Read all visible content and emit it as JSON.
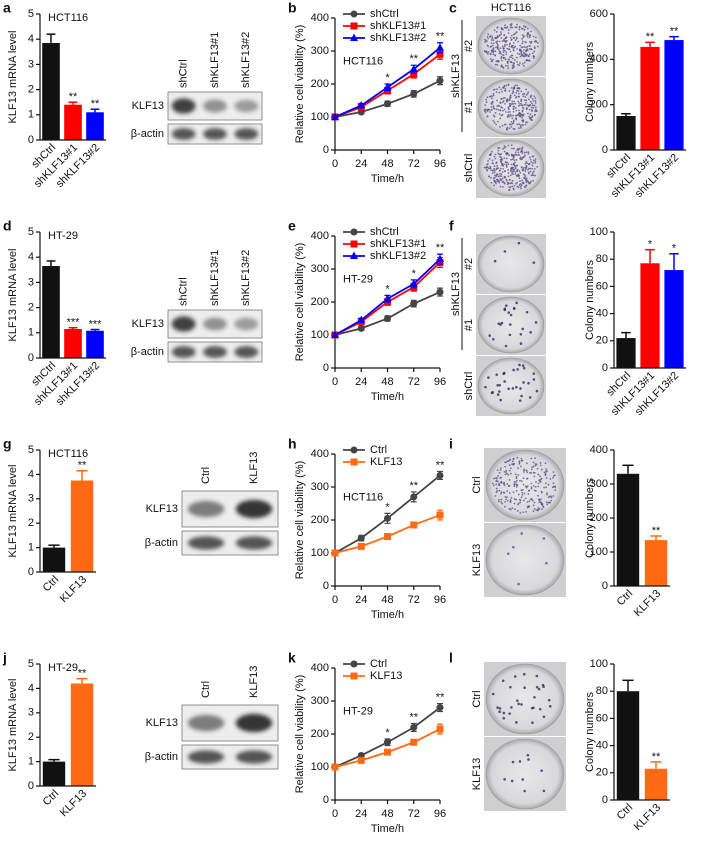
{
  "panel_letters": [
    "a",
    "b",
    "c",
    "d",
    "e",
    "f",
    "g",
    "h",
    "i",
    "j",
    "k",
    "l"
  ],
  "blots": [
    {
      "lanes": [
        "shCtrl",
        "shKLF13#1",
        "shKLF13#2"
      ],
      "rows": [
        "KLF13",
        "β-actin"
      ]
    },
    {
      "lanes": [
        "shCtrl",
        "shKLF13#1",
        "shKLF13#2"
      ],
      "rows": [
        "KLF13",
        "β-actin"
      ]
    },
    {
      "lanes": [
        "Ctrl",
        "KLF13"
      ],
      "rows": [
        "KLF13",
        "β-actin"
      ]
    },
    {
      "lanes": [
        "Ctrl",
        "KLF13"
      ],
      "rows": [
        "KLF13",
        "β-actin"
      ]
    }
  ],
  "colony_images": [
    {
      "title": "HCT116",
      "group": "shKLF13",
      "labels": [
        "#2",
        "#1",
        "shCtrl"
      ]
    },
    {
      "group": "shKLF13",
      "labels": [
        "#2",
        "#1",
        "shCtrl"
      ]
    },
    {
      "labels": [
        "Ctrl",
        "KLF13"
      ]
    },
    {
      "labels": [
        "Ctrl",
        "KLF13"
      ]
    }
  ],
  "chart_data": [
    {
      "type": "bar",
      "label": "HCT116",
      "ylabel": "KLF13 mRNA level",
      "categories": [
        "shCtrl",
        "shKLF13#1",
        "shKLF13#2"
      ],
      "values": [
        3.85,
        1.4,
        1.1
      ],
      "errors": [
        0.35,
        0.1,
        0.12
      ],
      "colors": [
        "#111111",
        "#ff0000",
        "#0000ff"
      ],
      "stars": [
        null,
        "**",
        "**"
      ],
      "ylim": [
        0,
        5
      ],
      "yticks": [
        0,
        1,
        2,
        3,
        4,
        5
      ]
    },
    {
      "type": "line",
      "label": "HCT116",
      "xlabel": "Time/h",
      "ylabel": "Relative cell viability (%)",
      "x": [
        0,
        24,
        48,
        72,
        96
      ],
      "xlim": [
        0,
        96
      ],
      "xticks": [
        0,
        24,
        48,
        72,
        96
      ],
      "ylim": [
        0,
        400
      ],
      "yticks": [
        0,
        100,
        200,
        300,
        400
      ],
      "series": [
        {
          "name": "shCtrl",
          "color": "#444444",
          "marker": "circle",
          "values": [
            100,
            115,
            140,
            170,
            210
          ],
          "errors": [
            5,
            6,
            8,
            10,
            12
          ]
        },
        {
          "name": "shKLF13#1",
          "color": "#ff0000",
          "marker": "square",
          "values": [
            100,
            130,
            180,
            230,
            290
          ],
          "errors": [
            5,
            6,
            10,
            12,
            15
          ]
        },
        {
          "name": "shKLF13#2",
          "color": "#0000ff",
          "marker": "triangle",
          "values": [
            100,
            135,
            190,
            245,
            310
          ],
          "errors": [
            5,
            6,
            10,
            12,
            15
          ]
        }
      ],
      "stars": [
        null,
        null,
        "*",
        "**",
        "**"
      ]
    },
    {
      "type": "bar",
      "ylabel": "Colony numbers",
      "categories": [
        "shCtrl",
        "shKLF13#1",
        "shKLF13#2"
      ],
      "values": [
        150,
        455,
        485
      ],
      "errors": [
        10,
        20,
        15
      ],
      "colors": [
        "#111111",
        "#ff0000",
        "#0000ff"
      ],
      "stars": [
        null,
        "**",
        "**"
      ],
      "ylim": [
        0,
        600
      ],
      "yticks": [
        0,
        200,
        400,
        600
      ]
    },
    {
      "type": "bar",
      "label": "HT-29",
      "ylabel": "KLF13 mRNA level",
      "categories": [
        "shCtrl",
        "shKLF13#1",
        "shKLF13#2"
      ],
      "values": [
        3.65,
        1.15,
        1.08
      ],
      "errors": [
        0.2,
        0.05,
        0.05
      ],
      "colors": [
        "#111111",
        "#ff0000",
        "#0000ff"
      ],
      "stars": [
        null,
        "***",
        "***"
      ],
      "ylim": [
        0,
        5
      ],
      "yticks": [
        0,
        1,
        2,
        3,
        4,
        5
      ]
    },
    {
      "type": "line",
      "label": "HT-29",
      "xlabel": "Time/h",
      "ylabel": "Relative cell viability (%)",
      "x": [
        0,
        24,
        48,
        72,
        96
      ],
      "xlim": [
        0,
        96
      ],
      "xticks": [
        0,
        24,
        48,
        72,
        96
      ],
      "ylim": [
        0,
        400
      ],
      "yticks": [
        0,
        100,
        200,
        300,
        400
      ],
      "series": [
        {
          "name": "shCtrl",
          "color": "#444444",
          "marker": "circle",
          "values": [
            100,
            120,
            150,
            195,
            230
          ],
          "errors": [
            5,
            6,
            8,
            10,
            12
          ]
        },
        {
          "name": "shKLF13#1",
          "color": "#ff0000",
          "marker": "square",
          "values": [
            100,
            140,
            200,
            245,
            320
          ],
          "errors": [
            5,
            6,
            10,
            12,
            15
          ]
        },
        {
          "name": "shKLF13#2",
          "color": "#0000ff",
          "marker": "triangle",
          "values": [
            100,
            145,
            210,
            255,
            330
          ],
          "errors": [
            5,
            6,
            10,
            12,
            15
          ]
        }
      ],
      "stars": [
        null,
        null,
        "*",
        "*",
        "**"
      ]
    },
    {
      "type": "bar",
      "ylabel": "Colony numbers",
      "categories": [
        "shCtrl",
        "shKLF13#1",
        "shKLF13#2"
      ],
      "values": [
        22,
        77,
        72
      ],
      "errors": [
        4,
        10,
        12
      ],
      "colors": [
        "#111111",
        "#ff0000",
        "#0000ff"
      ],
      "stars": [
        null,
        "*",
        "*"
      ],
      "ylim": [
        0,
        100
      ],
      "yticks": [
        0,
        20,
        40,
        60,
        80,
        100
      ]
    },
    {
      "type": "bar",
      "label": "HCT116",
      "ylabel": "KLF13 mRNA level",
      "categories": [
        "Ctrl",
        "KLF13"
      ],
      "values": [
        1.0,
        3.75
      ],
      "errors": [
        0.1,
        0.4
      ],
      "colors": [
        "#111111",
        "#ff6a13"
      ],
      "stars": [
        null,
        "**"
      ],
      "ylim": [
        0,
        5
      ],
      "yticks": [
        0,
        1,
        2,
        3,
        4,
        5
      ]
    },
    {
      "type": "line",
      "label": "HCT116",
      "xlabel": "Time/h",
      "ylabel": "Relative cell viability (%)",
      "x": [
        0,
        24,
        48,
        72,
        96
      ],
      "xlim": [
        0,
        96
      ],
      "xticks": [
        0,
        24,
        48,
        72,
        96
      ],
      "ylim": [
        0,
        400
      ],
      "yticks": [
        0,
        100,
        200,
        300,
        400
      ],
      "series": [
        {
          "name": "Ctrl",
          "color": "#444444",
          "marker": "circle",
          "values": [
            100,
            145,
            205,
            270,
            335
          ],
          "errors": [
            6,
            8,
            15,
            15,
            12
          ]
        },
        {
          "name": "KLF13",
          "color": "#ff6a13",
          "marker": "square",
          "values": [
            100,
            120,
            150,
            185,
            215
          ],
          "errors": [
            5,
            5,
            6,
            8,
            15
          ]
        }
      ],
      "stars": [
        null,
        null,
        "*",
        "**",
        "**"
      ]
    },
    {
      "type": "bar",
      "ylabel": "Colony numbers",
      "categories": [
        "Ctrl",
        "KLF13"
      ],
      "values": [
        330,
        135
      ],
      "errors": [
        25,
        12
      ],
      "colors": [
        "#111111",
        "#ff6a13"
      ],
      "stars": [
        null,
        "**"
      ],
      "ylim": [
        0,
        400
      ],
      "yticks": [
        0,
        100,
        200,
        300,
        400
      ]
    },
    {
      "type": "bar",
      "label": "HT-29",
      "ylabel": "KLF13 mRNA level",
      "categories": [
        "Ctrl",
        "KLF13"
      ],
      "values": [
        1.0,
        4.2
      ],
      "errors": [
        0.08,
        0.2
      ],
      "colors": [
        "#111111",
        "#ff6a13"
      ],
      "stars": [
        null,
        "**"
      ],
      "ylim": [
        0,
        5
      ],
      "yticks": [
        0,
        1,
        2,
        3,
        4,
        5
      ]
    },
    {
      "type": "line",
      "label": "HT-29",
      "xlabel": "Time/h",
      "ylabel": "Relative cell viability (%)",
      "x": [
        0,
        24,
        48,
        72,
        96
      ],
      "xlim": [
        0,
        96
      ],
      "xticks": [
        0,
        24,
        48,
        72,
        96
      ],
      "ylim": [
        0,
        400
      ],
      "yticks": [
        0,
        100,
        200,
        300,
        400
      ],
      "series": [
        {
          "name": "Ctrl",
          "color": "#444444",
          "marker": "circle",
          "values": [
            100,
            135,
            175,
            220,
            280
          ],
          "errors": [
            5,
            6,
            10,
            12,
            12
          ]
        },
        {
          "name": "KLF13",
          "color": "#ff6a13",
          "marker": "square",
          "values": [
            100,
            120,
            145,
            175,
            215
          ],
          "errors": [
            5,
            5,
            8,
            8,
            15
          ]
        }
      ],
      "stars": [
        null,
        null,
        "*",
        "**",
        "**"
      ]
    },
    {
      "type": "bar",
      "ylabel": "Colony numbers",
      "categories": [
        "Ctrl",
        "KLF13"
      ],
      "values": [
        80,
        23
      ],
      "errors": [
        8,
        5
      ],
      "colors": [
        "#111111",
        "#ff6a13"
      ],
      "stars": [
        null,
        "**"
      ],
      "ylim": [
        0,
        100
      ],
      "yticks": [
        0,
        20,
        40,
        60,
        80,
        100
      ]
    }
  ]
}
